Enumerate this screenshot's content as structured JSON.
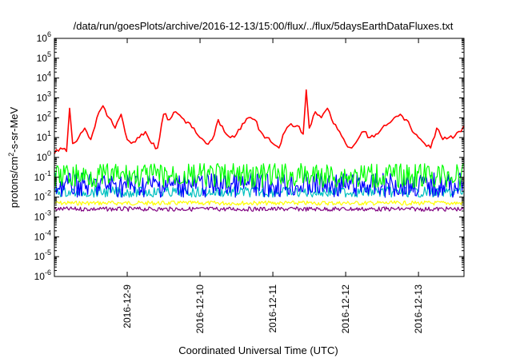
{
  "chart_data": {
    "type": "line",
    "title": "/data/run/goesPlots/archive/2016-12-13/15:00/flux/../flux/5daysEarthDataFluxes.txt",
    "xlabel": "Coordinated Universal Time (UTC)",
    "ylabel": {
      "prefix": "protons/cm",
      "sup": "2",
      "suffix": "-s-sr-MeV"
    },
    "yscale": "log",
    "ylim": [
      1e-06,
      1000000.0
    ],
    "xlim": [
      "2016-12-08T00:00",
      "2016-12-13T15:00"
    ],
    "x_ticks": [
      {
        "x": "2016-12-09T00:00",
        "label": "2016-12-9"
      },
      {
        "x": "2016-12-10T00:00",
        "label": "2016-12-10"
      },
      {
        "x": "2016-12-11T00:00",
        "label": "2016-12-11"
      },
      {
        "x": "2016-12-12T00:00",
        "label": "2016-12-12"
      },
      {
        "x": "2016-12-13T00:00",
        "label": "2016-12-13"
      }
    ],
    "y_ticks": [
      {
        "exp": -6,
        "base": "10",
        "sup": "-6"
      },
      {
        "exp": -5,
        "base": "10",
        "sup": "-5"
      },
      {
        "exp": -4,
        "base": "10",
        "sup": "-4"
      },
      {
        "exp": -3,
        "base": "10",
        "sup": "-3"
      },
      {
        "exp": -2,
        "base": "10",
        "sup": "-2"
      },
      {
        "exp": -1,
        "base": "10",
        "sup": "-1"
      },
      {
        "exp": 0,
        "base": "10",
        "sup": "0"
      },
      {
        "exp": 1,
        "base": "10",
        "sup": "1"
      },
      {
        "exp": 2,
        "base": "10",
        "sup": "2"
      },
      {
        "exp": 3,
        "base": "10",
        "sup": "3"
      },
      {
        "exp": 4,
        "base": "10",
        "sup": "4"
      },
      {
        "exp": 5,
        "base": "10",
        "sup": "5"
      },
      {
        "exp": 6,
        "base": "10",
        "sup": "6"
      }
    ],
    "grid": false,
    "legend": "none",
    "series": [
      {
        "color": "#ff0000",
        "x": [
          "2016-12-08T00:00",
          "2016-12-08T02:00",
          "2016-12-08T04:00",
          "2016-12-08T05:00",
          "2016-12-08T06:00",
          "2016-12-08T08:00",
          "2016-12-08T10:00",
          "2016-12-08T12:00",
          "2016-12-08T14:00",
          "2016-12-08T16:00",
          "2016-12-08T18:00",
          "2016-12-08T20:00",
          "2016-12-08T22:00",
          "2016-12-09T00:00",
          "2016-12-09T02:00",
          "2016-12-09T04:00",
          "2016-12-09T06:00",
          "2016-12-09T08:00",
          "2016-12-09T10:00",
          "2016-12-09T12:00",
          "2016-12-09T14:00",
          "2016-12-09T16:00",
          "2016-12-09T18:00",
          "2016-12-09T20:00",
          "2016-12-09T22:00",
          "2016-12-10T00:00",
          "2016-12-10T02:00",
          "2016-12-10T04:00",
          "2016-12-10T06:00",
          "2016-12-10T08:00",
          "2016-12-10T10:00",
          "2016-12-10T12:00",
          "2016-12-10T14:00",
          "2016-12-10T16:00",
          "2016-12-10T18:00",
          "2016-12-10T20:00",
          "2016-12-10T22:00",
          "2016-12-11T00:00",
          "2016-12-11T02:00",
          "2016-12-11T04:00",
          "2016-12-11T06:00",
          "2016-12-11T08:00",
          "2016-12-11T10:00",
          "2016-12-11T11:00",
          "2016-12-11T12:00",
          "2016-12-11T14:00",
          "2016-12-11T16:00",
          "2016-12-11T18:00",
          "2016-12-11T20:00",
          "2016-12-11T22:00",
          "2016-12-12T00:00",
          "2016-12-12T02:00",
          "2016-12-12T04:00",
          "2016-12-12T06:00",
          "2016-12-12T08:00",
          "2016-12-12T10:00",
          "2016-12-12T12:00",
          "2016-12-12T14:00",
          "2016-12-12T16:00",
          "2016-12-12T18:00",
          "2016-12-12T20:00",
          "2016-12-12T22:00",
          "2016-12-13T00:00",
          "2016-12-13T02:00",
          "2016-12-13T04:00",
          "2016-12-13T06:00",
          "2016-12-13T08:00",
          "2016-12-13T10:00",
          "2016-12-13T12:00",
          "2016-12-13T14:00",
          "2016-12-13T15:00"
        ],
        "y": [
          1.5,
          3,
          2,
          300,
          5,
          10,
          30,
          8,
          100,
          400,
          100,
          30,
          150,
          8,
          6,
          10,
          20,
          5,
          3,
          150,
          80,
          200,
          100,
          60,
          30,
          10,
          5,
          8,
          80,
          20,
          10,
          15,
          50,
          100,
          80,
          20,
          10,
          5,
          3,
          20,
          50,
          40,
          15,
          2500,
          30,
          200,
          100,
          300,
          50,
          20,
          5,
          3,
          8,
          20,
          10,
          15,
          30,
          50,
          100,
          150,
          80,
          20,
          10,
          5,
          3,
          30,
          8,
          10,
          12,
          20,
          40
        ]
      },
      {
        "color": "#00ff00",
        "x": [
          "2016-12-08T00:00",
          "2016-12-13T15:00"
        ],
        "y": [
          0.12,
          0.12
        ]
      },
      {
        "color": "#0000ff",
        "x": [
          "2016-12-08T00:00",
          "2016-12-13T15:00"
        ],
        "y": [
          0.04,
          0.04
        ]
      },
      {
        "color": "#00c0c0",
        "x": [
          "2016-12-08T00:00",
          "2016-12-13T15:00"
        ],
        "y": [
          0.018,
          0.018
        ]
      },
      {
        "color": "#ffff00",
        "x": [
          "2016-12-08T00:00",
          "2016-12-13T15:00"
        ],
        "y": [
          0.005,
          0.005
        ]
      },
      {
        "color": "#800080",
        "x": [
          "2016-12-08T00:00",
          "2016-12-13T15:00"
        ],
        "y": [
          0.0025,
          0.0025
        ]
      }
    ]
  }
}
